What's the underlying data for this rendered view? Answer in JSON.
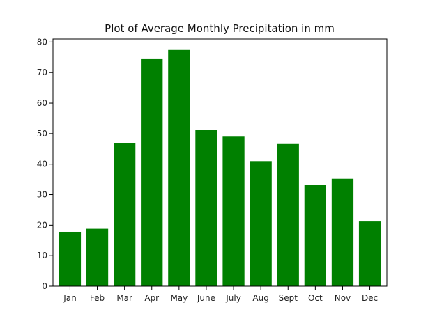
{
  "chart_data": {
    "type": "bar",
    "title": "Plot of Average Monthly Precipitation in mm",
    "xlabel": "",
    "ylabel": "",
    "categories": [
      "Jan",
      "Feb",
      "Mar",
      "Apr",
      "May",
      "June",
      "July",
      "Aug",
      "Sept",
      "Oct",
      "Nov",
      "Dec"
    ],
    "values": [
      17.8,
      18.8,
      46.8,
      74.4,
      77.4,
      51.2,
      49.0,
      41.0,
      46.6,
      33.2,
      35.2,
      21.2
    ],
    "ylim": [
      0,
      81
    ],
    "yticks": [
      0,
      10,
      20,
      30,
      40,
      50,
      60,
      70,
      80
    ],
    "bar_color": "#008000",
    "grid": false,
    "legend": "none"
  }
}
